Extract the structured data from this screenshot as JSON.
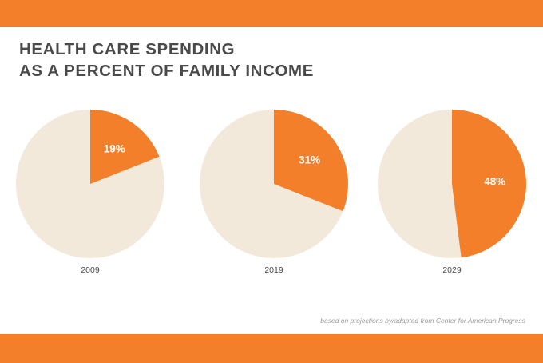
{
  "title": {
    "line1": "HEALTH CARE SPENDING",
    "line2": "AS A PERCENT OF FAMILY INCOME"
  },
  "source": "based on projections by/adapted from Center for American Progress",
  "colors": {
    "accent": "#f47f2a",
    "remainder": "#f2e9da",
    "text": "#4a4a4a"
  },
  "chart_data": {
    "type": "pie",
    "title": "HEALTH CARE SPENDING AS A PERCENT OF FAMILY INCOME",
    "categories": [
      "2009",
      "2019",
      "2029"
    ],
    "values": [
      19,
      31,
      48
    ],
    "value_labels": [
      "19%",
      "31%",
      "48%"
    ],
    "unit": "%"
  }
}
